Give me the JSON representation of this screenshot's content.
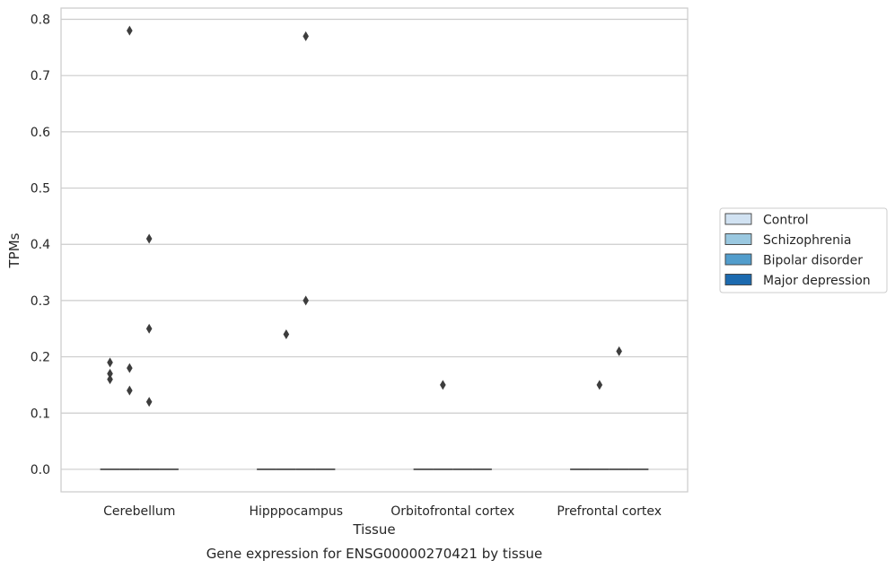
{
  "chart_data": {
    "type": "boxplot",
    "title": "",
    "caption": "Gene expression for ENSG00000270421 by tissue",
    "xlabel": "Tissue",
    "ylabel": "TPMs",
    "categories": [
      "Cerebellum",
      "Hipppocampus",
      "Orbitofrontal cortex",
      "Prefrontal cortex"
    ],
    "ylim": [
      -0.04,
      0.82
    ],
    "yticks": [
      0.0,
      0.1,
      0.2,
      0.3,
      0.4,
      0.5,
      0.6,
      0.7,
      0.8
    ],
    "ytick_labels": [
      "0.0",
      "0.1",
      "0.2",
      "0.3",
      "0.4",
      "0.5",
      "0.6",
      "0.7",
      "0.8"
    ],
    "grid": true,
    "legend_position": "right",
    "series": [
      {
        "name": "Control",
        "color": "#d1e2f2",
        "median": [
          0,
          0,
          0,
          0
        ],
        "outliers": [
          [
            0.19,
            0.17,
            0.16
          ],
          [],
          [],
          []
        ]
      },
      {
        "name": "Schizophrenia",
        "color": "#9ac8e0",
        "median": [
          0,
          0,
          0,
          0
        ],
        "outliers": [
          [
            0.78,
            0.18,
            0.14
          ],
          [
            0.24
          ],
          [
            0.15
          ],
          [
            0.15
          ]
        ]
      },
      {
        "name": "Bipolar disorder",
        "color": "#529dcc",
        "median": [
          0,
          0,
          0,
          0
        ],
        "outliers": [
          [
            0.41,
            0.25,
            0.12
          ],
          [
            0.77,
            0.3
          ],
          [],
          [
            0.21
          ]
        ]
      },
      {
        "name": "Major depression",
        "color": "#1c6aaf",
        "median": [
          0,
          0,
          0,
          0
        ],
        "outliers": [
          [],
          [],
          [],
          []
        ]
      }
    ]
  }
}
